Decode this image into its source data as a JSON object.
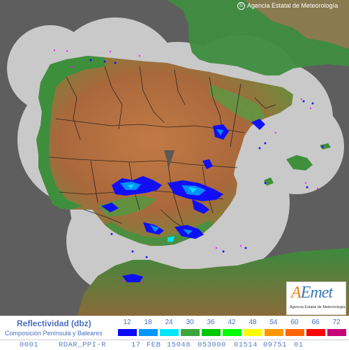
{
  "header": {
    "copyright_symbol": "©",
    "copyright_text": "Agencia Estatal de Meteorología"
  },
  "logo": {
    "letter": "A",
    "word": "Emet",
    "subtitle": "Agencia Estatal de Meteorología"
  },
  "legend": {
    "title": "Reflectividad (dbz)",
    "subtitle": "Composición Península y Baleares",
    "levels": [
      "12",
      "18",
      "24",
      "30",
      "36",
      "42",
      "48",
      "54",
      "60",
      "66",
      "72"
    ],
    "colors": [
      "#0a0aff",
      "#0096ff",
      "#00e6ff",
      "#3ca53c",
      "#00c800",
      "#00ff00",
      "#ffff00",
      "#ff9600",
      "#ff6400",
      "#ff0000",
      "#c80078"
    ]
  },
  "status_bar": {
    "fields": [
      "0001",
      "RDAR_PPI-R",
      "17",
      "FEB",
      "15048",
      "053000",
      "01514",
      "09751",
      "01"
    ]
  },
  "map": {
    "sea_color": "#5e5e5e",
    "coverage_color": "#c9c9c9",
    "land_low_color": "#2f8a3c",
    "land_high_color": "#b06a3c",
    "echo_colors": [
      "#0a0aff",
      "#0096ff",
      "#00e6ff"
    ]
  }
}
